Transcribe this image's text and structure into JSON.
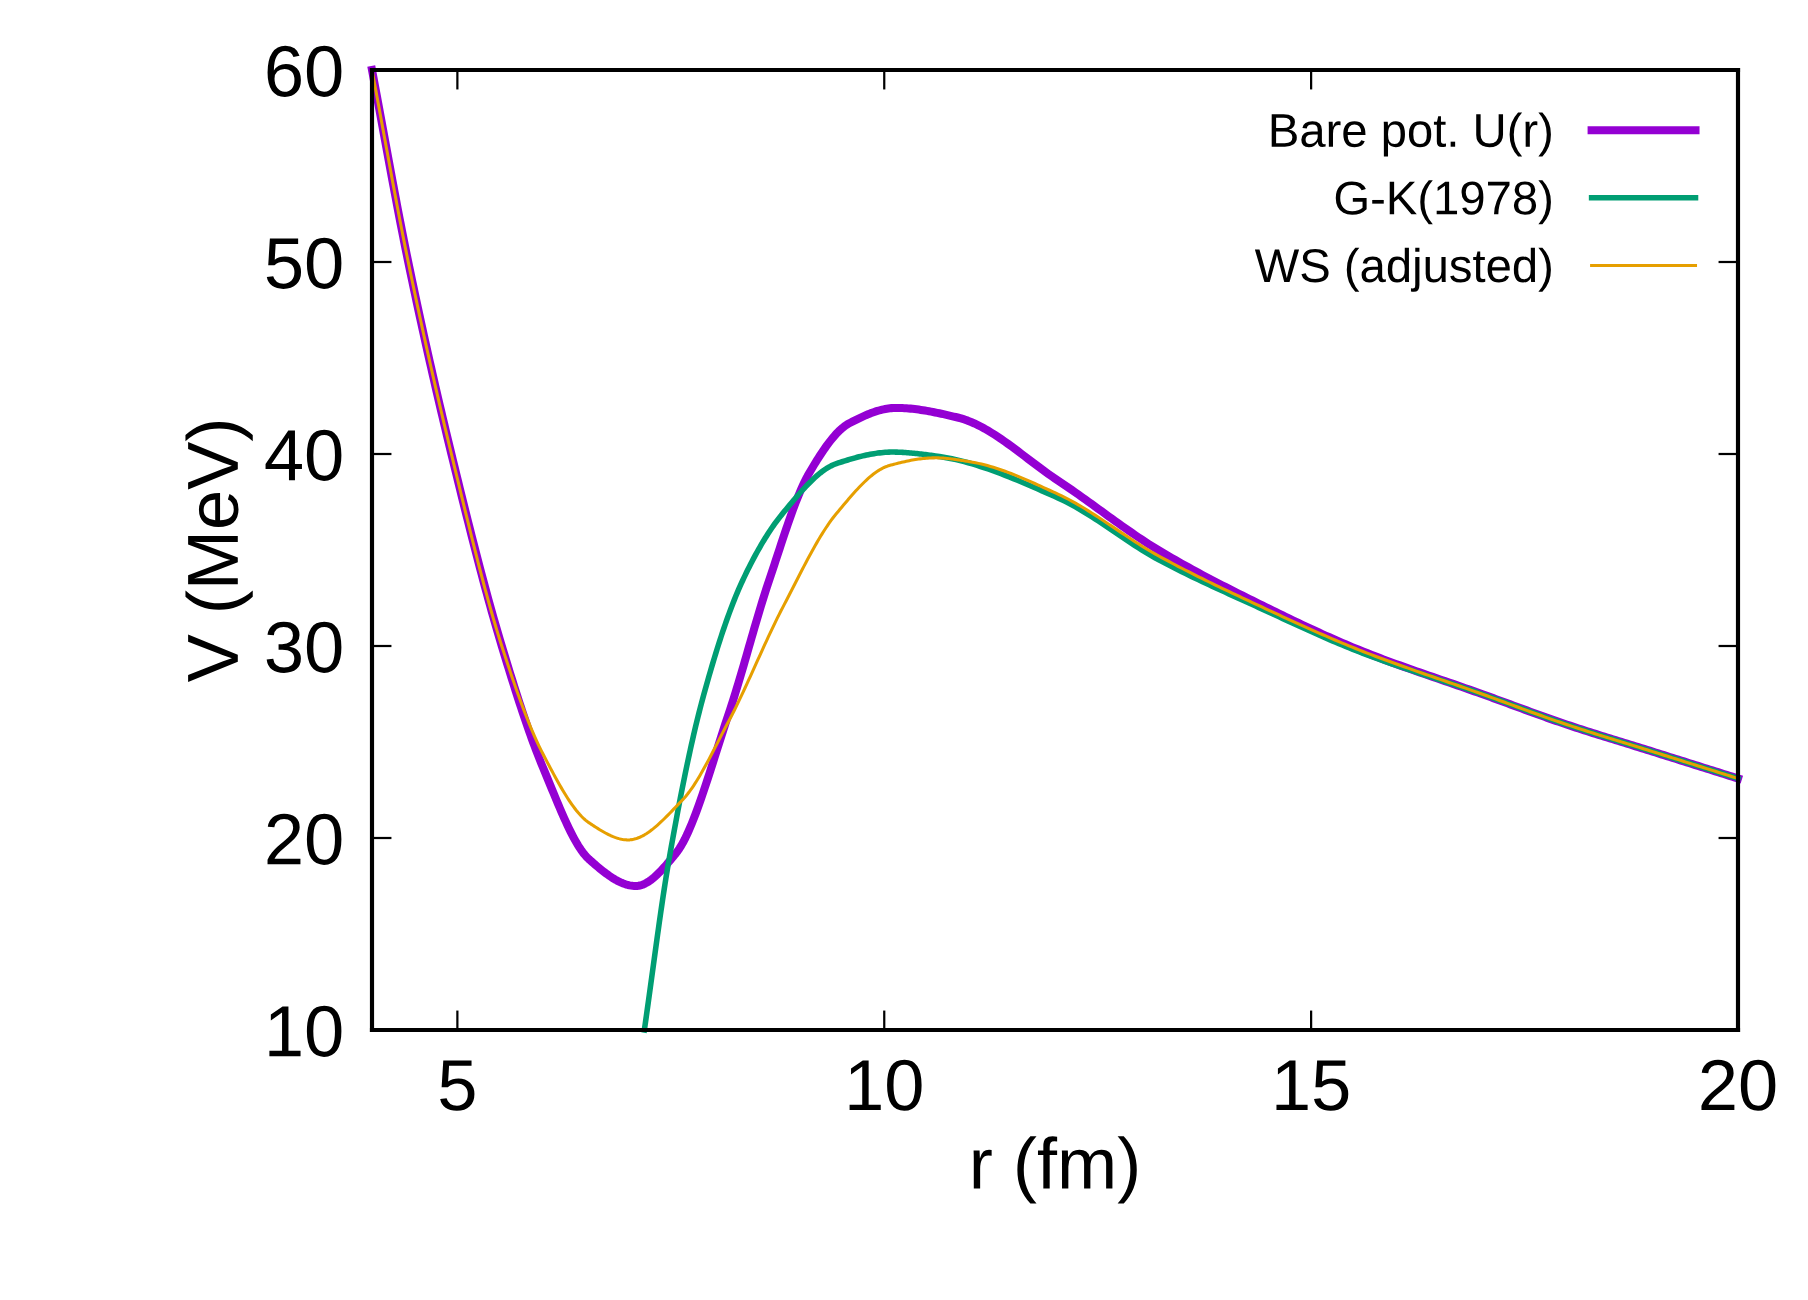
{
  "chart_data": {
    "type": "line",
    "xlabel": "r (fm)",
    "ylabel": "V (MeV)",
    "xlim": [
      4,
      20
    ],
    "ylim": [
      10,
      60
    ],
    "xticks": [
      5,
      10,
      15,
      20
    ],
    "yticks": [
      10,
      20,
      30,
      40,
      50,
      60
    ],
    "grid": false,
    "legend": "top right",
    "marker": "none",
    "line_style": "solid",
    "series": [
      {
        "name": "Bare pot. U(r)",
        "color": "#9400d3",
        "x": [
          4.0,
          4.42,
          4.93,
          5.52,
          6.0,
          6.54,
          7.09,
          7.56,
          8.18,
          8.65,
          9.12,
          9.59,
          10.14,
          10.86,
          12.04,
          13.21,
          14.39,
          15.56,
          17,
          18,
          19,
          20
        ],
        "values": [
          60,
          50.1,
          40.0,
          30.0,
          23.7,
          18.9,
          17.5,
          19.2,
          26.5,
          33.4,
          39.0,
          41.6,
          42.4,
          41.9,
          38.6,
          35.0,
          32.2,
          29.8,
          27.5,
          25.9,
          24.5,
          23.1
        ]
      },
      {
        "name": "G-K(1978)",
        "color": "#009e73",
        "x": [
          7.19,
          7.48,
          7.87,
          8.34,
          8.81,
          9.44,
          10.1,
          10.6,
          12.04,
          13.21,
          14.39,
          15.56,
          17,
          18,
          19,
          20
        ],
        "values": [
          10,
          18.9,
          27.2,
          33.4,
          36.9,
          39.5,
          40.1,
          39.9,
          37.7,
          34.5,
          32.0,
          29.7,
          27.5,
          25.9,
          24.5,
          23.1
        ]
      },
      {
        "name": "WS (adjusted)",
        "color": "#e69f00",
        "x": [
          4.0,
          4.42,
          4.93,
          5.52,
          6.0,
          6.54,
          7.0,
          7.64,
          8.18,
          8.81,
          9.44,
          10.06,
          10.6,
          11.0,
          12.04,
          13.21,
          14.39,
          15.56,
          17,
          18,
          19,
          20
        ],
        "values": [
          60,
          50.1,
          40.0,
          30.0,
          24.4,
          20.8,
          19.9,
          22.0,
          26.1,
          32.0,
          36.9,
          39.4,
          39.8,
          39.6,
          37.9,
          34.7,
          32.1,
          29.8,
          27.5,
          25.9,
          24.5,
          23.1
        ]
      }
    ]
  }
}
